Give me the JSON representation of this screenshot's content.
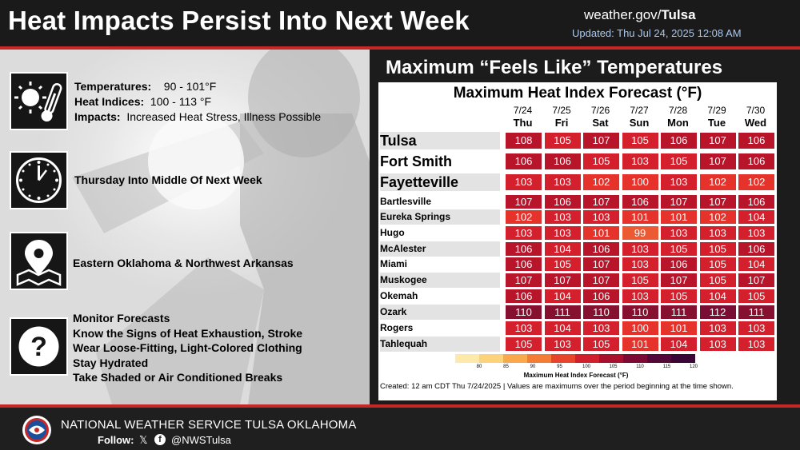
{
  "header": {
    "title": "Heat Impacts Persist Into Next Week",
    "site_prefix": "weather.gov/",
    "site_office": "Tulsa",
    "updated": "Updated: Thu Jul 24, 2025 12:08 AM"
  },
  "left": {
    "temps_label": "Temperatures:",
    "temps_value": "90 - 101°F",
    "heat_label": "Heat Indices:",
    "heat_value": "100 - 113 °F",
    "impacts_label": "Impacts:",
    "impacts_value": "Increased Heat Stress, Illness Possible",
    "timing": "Thursday Into Middle Of Next Week",
    "location": "Eastern Oklahoma & Northwest Arkansas",
    "actions": [
      "Monitor Forecasts",
      "Know the Signs of Heat Exhaustion, Stroke",
      "Wear Loose-Fitting, Light-Colored Clothing",
      "Stay Hydrated",
      "Take Shaded or Air Conditioned Breaks"
    ],
    "icons": [
      "sun-thermometer-icon",
      "clock-icon",
      "map-pin-icon",
      "question-icon"
    ]
  },
  "forecast": {
    "panel_title": "Maximum “Feels Like” Temperatures",
    "table_title": "Maximum Heat Index Forecast (°F)",
    "dates": [
      "7/24",
      "7/25",
      "7/26",
      "7/27",
      "7/28",
      "7/29",
      "7/30"
    ],
    "days": [
      "Thu",
      "Fri",
      "Sat",
      "Sun",
      "Mon",
      "Tue",
      "Wed"
    ],
    "rows": [
      {
        "city": "Tulsa",
        "values": [
          108,
          105,
          107,
          105,
          106,
          107,
          106
        ]
      },
      {
        "city": "Fort Smith",
        "values": [
          106,
          106,
          105,
          103,
          105,
          107,
          106
        ]
      },
      {
        "city": "Fayetteville",
        "values": [
          103,
          103,
          102,
          100,
          103,
          102,
          102
        ]
      },
      {
        "city": "Bartlesville",
        "values": [
          107,
          106,
          107,
          106,
          107,
          107,
          106
        ]
      },
      {
        "city": "Eureka Springs",
        "values": [
          102,
          103,
          103,
          101,
          101,
          102,
          104
        ]
      },
      {
        "city": "Hugo",
        "values": [
          103,
          103,
          101,
          99,
          103,
          103,
          103
        ]
      },
      {
        "city": "McAlester",
        "values": [
          106,
          104,
          106,
          103,
          105,
          105,
          106
        ]
      },
      {
        "city": "Miami",
        "values": [
          106,
          105,
          107,
          103,
          106,
          105,
          104
        ]
      },
      {
        "city": "Muskogee",
        "values": [
          107,
          107,
          107,
          105,
          107,
          105,
          107
        ]
      },
      {
        "city": "Okemah",
        "values": [
          106,
          104,
          106,
          103,
          105,
          104,
          105
        ]
      },
      {
        "city": "Ozark",
        "values": [
          110,
          111,
          110,
          110,
          111,
          112,
          111
        ]
      },
      {
        "city": "Rogers",
        "values": [
          103,
          104,
          103,
          100,
          101,
          103,
          103
        ]
      },
      {
        "city": "Tahlequah",
        "values": [
          105,
          103,
          105,
          101,
          104,
          103,
          103
        ]
      }
    ],
    "legend_title": "Maximum Heat Index Forecast (°F)",
    "legend_ticks": [
      "80",
      "85",
      "90",
      "95",
      "100",
      "105",
      "110",
      "115",
      "120"
    ],
    "legend_colors": [
      "#fde9a9",
      "#fcd27a",
      "#f9a94b",
      "#f47c36",
      "#e8432b",
      "#d11f2b",
      "#a8102d",
      "#7c0a35",
      "#54083a",
      "#3a0636"
    ],
    "created": "Created: 12 am CDT Thu 7/24/2025  |  Values are maximums over the period beginning at the time shown."
  },
  "footer": {
    "office": "NATIONAL WEATHER SERVICE TULSA OKLAHOMA",
    "follow": "Follow:",
    "handle": "@NWSTulsa",
    "x_glyph": "𝕏",
    "fb_glyph": "f"
  },
  "colors": {
    "accent_red": "#c62828",
    "updated_blue": "#a9c8f0"
  }
}
